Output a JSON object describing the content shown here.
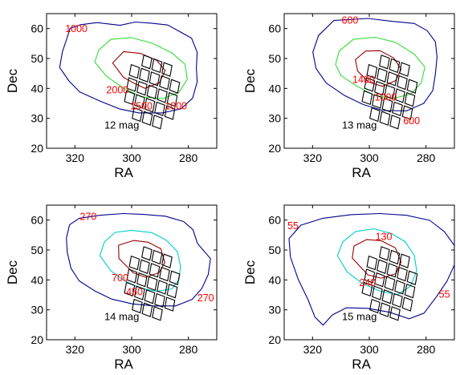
{
  "chart_data": [
    {
      "type": "contour",
      "panel_label": "12 mag",
      "xlabel": "RA",
      "ylabel": "Dec",
      "xlim": [
        330,
        270
      ],
      "ylim": [
        20,
        65
      ],
      "xticks": [
        320,
        300,
        280
      ],
      "yticks": [
        20,
        30,
        40,
        50,
        60
      ],
      "contours": [
        {
          "level": 1000,
          "color": "#00008b",
          "points": [
            [
              321.7,
              60.1
            ],
            [
              318.0,
              61.3
            ],
            [
              312.1,
              62.0
            ],
            [
              304.1,
              61.1
            ],
            [
              298.7,
              62.2
            ],
            [
              293.1,
              61.8
            ],
            [
              287.3,
              61.2
            ],
            [
              282.7,
              58.8
            ],
            [
              278.9,
              56.8
            ],
            [
              276.9,
              52.1
            ],
            [
              277.2,
              46.8
            ],
            [
              276.9,
              42.2
            ],
            [
              278.5,
              36.8
            ],
            [
              282.5,
              33.2
            ],
            [
              289.1,
              31.8
            ],
            [
              297.4,
              31.8
            ],
            [
              304.1,
              33.1
            ],
            [
              311.0,
              35.7
            ],
            [
              318.3,
              38.8
            ],
            [
              322.1,
              42.5
            ],
            [
              325.4,
              47.0
            ],
            [
              324.4,
              52.3
            ],
            [
              322.7,
              57.1
            ]
          ]
        },
        {
          "level": 1500,
          "color": "#33dd33",
          "points": [
            [
              313.0,
              48.8
            ],
            [
              311.6,
              52.8
            ],
            [
              307.3,
              56.4
            ],
            [
              300.1,
              57.0
            ],
            [
              292.7,
              55.1
            ],
            [
              285.9,
              51.9
            ],
            [
              281.2,
              48.1
            ],
            [
              280.4,
              43.0
            ],
            [
              283.4,
              38.6
            ],
            [
              289.0,
              36.6
            ],
            [
              296.7,
              37.2
            ],
            [
              302.9,
              40.1
            ],
            [
              308.8,
              44.0
            ]
          ]
        },
        {
          "level": 2000,
          "color": "#990000",
          "points": [
            [
              306.7,
              48.5
            ],
            [
              302.8,
              52.3
            ],
            [
              296.8,
              51.7
            ],
            [
              291.2,
              49.4
            ],
            [
              288.2,
              46.0
            ],
            [
              290.2,
              41.9
            ],
            [
              295.3,
              40.0
            ],
            [
              299.5,
              41.9
            ],
            [
              302.9,
              43.7
            ]
          ]
        }
      ],
      "contour_labels": [
        {
          "text": "1000",
          "ra": 319.5,
          "dec": 58.8
        },
        {
          "text": "2000",
          "ra": 305.0,
          "dec": 38.3
        },
        {
          "text": "1500",
          "ra": 296.6,
          "dec": 33.0
        },
        {
          "text": "1000",
          "ra": 284.4,
          "dec": 33.0
        }
      ]
    },
    {
      "type": "contour",
      "panel_label": "13 mag",
      "xlabel": "RA",
      "ylabel": "Dec",
      "xlim": [
        330,
        270
      ],
      "ylim": [
        20,
        65
      ],
      "xticks": [
        320,
        300,
        280
      ],
      "yticks": [
        20,
        30,
        40,
        50,
        60
      ],
      "contours": [
        {
          "level": 600,
          "color": "#00008b",
          "points": [
            [
              312.5,
              62.7
            ],
            [
              300.5,
              63.4
            ],
            [
              291.8,
              62.4
            ],
            [
              284.1,
              61.7
            ],
            [
              279.6,
              59.3
            ],
            [
              276.7,
              55.6
            ],
            [
              276.1,
              50.5
            ],
            [
              276.7,
              44.8
            ],
            [
              277.6,
              39.3
            ],
            [
              280.8,
              35.0
            ],
            [
              286.8,
              32.5
            ],
            [
              295.1,
              32.6
            ],
            [
              302.1,
              34.6
            ],
            [
              308.7,
              37.6
            ],
            [
              315.2,
              41.8
            ],
            [
              318.8,
              46.7
            ],
            [
              319.9,
              52.1
            ],
            [
              317.9,
              57.7
            ]
          ]
        },
        {
          "level": 1000,
          "color": "#33dd33",
          "points": [
            [
              311.9,
              48.0
            ],
            [
              310.6,
              52.5
            ],
            [
              305.6,
              56.4
            ],
            [
              298.0,
              57.1
            ],
            [
              290.8,
              55.4
            ],
            [
              284.2,
              51.5
            ],
            [
              280.4,
              47.1
            ],
            [
              281.7,
              41.9
            ],
            [
              285.2,
              38.2
            ],
            [
              291.7,
              36.6
            ],
            [
              298.5,
              37.8
            ],
            [
              304.8,
              41.0
            ],
            [
              310.0,
              44.3
            ]
          ]
        },
        {
          "level": 1400,
          "color": "#990000",
          "points": [
            [
              304.1,
              45.8
            ],
            [
              304.9,
              49.6
            ],
            [
              301.3,
              52.5
            ],
            [
              296.2,
              52.6
            ],
            [
              291.4,
              50.2
            ],
            [
              288.8,
              46.4
            ],
            [
              290.7,
              42.6
            ],
            [
              295.4,
              40.7
            ],
            [
              300.2,
              42.1
            ]
          ]
        }
      ],
      "contour_labels": [
        {
          "text": "600",
          "ra": 306.8,
          "dec": 61.6
        },
        {
          "text": "1400",
          "ra": 302.0,
          "dec": 41.8
        },
        {
          "text": "1000",
          "ra": 294.2,
          "dec": 35.9
        },
        {
          "text": "600",
          "ra": 285.1,
          "dec": 28.1
        }
      ]
    },
    {
      "type": "contour",
      "panel_label": "14 mag",
      "xlabel": "RA",
      "ylabel": "Dec",
      "xlim": [
        330,
        270
      ],
      "ylim": [
        20,
        65
      ],
      "xticks": [
        320,
        300,
        280
      ],
      "yticks": [
        20,
        30,
        40,
        50,
        60
      ],
      "contours": [
        {
          "level": 270,
          "color": "#00008b",
          "points": [
            [
              318.5,
              60.6
            ],
            [
              311.3,
              61.6
            ],
            [
              302.9,
              62.2
            ],
            [
              295.8,
              61.9
            ],
            [
              288.1,
              61.3
            ],
            [
              281.7,
              59.5
            ],
            [
              278.4,
              56.8
            ],
            [
              276.8,
              52.2
            ],
            [
              272.2,
              47.1
            ],
            [
              273.0,
              41.8
            ],
            [
              275.3,
              37.1
            ],
            [
              278.7,
              33.5
            ],
            [
              284.5,
              31.3
            ],
            [
              292.3,
              31.3
            ],
            [
              299.8,
              32.0
            ],
            [
              307.1,
              33.6
            ],
            [
              313.0,
              36.3
            ],
            [
              318.5,
              39.7
            ],
            [
              321.4,
              43.9
            ],
            [
              322.7,
              49.2
            ],
            [
              323.0,
              54.0
            ],
            [
              321.9,
              58.4
            ]
          ]
        },
        {
          "level": 450,
          "color": "#00cccc",
          "points": [
            [
              311.2,
              48.1
            ],
            [
              309.6,
              52.7
            ],
            [
              305.8,
              55.9
            ],
            [
              300.1,
              56.6
            ],
            [
              292.9,
              55.8
            ],
            [
              287.8,
              53.3
            ],
            [
              283.9,
              49.5
            ],
            [
              282.8,
              44.6
            ],
            [
              283.3,
              40.2
            ],
            [
              285.8,
              37.0
            ],
            [
              291.1,
              36.2
            ],
            [
              297.2,
              37.3
            ],
            [
              302.9,
              39.9
            ],
            [
              307.4,
              43.1
            ]
          ]
        },
        {
          "level": 700,
          "color": "#990000",
          "points": [
            [
              304.5,
              47.2
            ],
            [
              304.6,
              51.6
            ],
            [
              299.3,
              53.2
            ],
            [
              294.2,
              52.6
            ],
            [
              289.7,
              50.4
            ],
            [
              288.3,
              45.8
            ],
            [
              290.4,
              42.4
            ],
            [
              295.1,
              40.9
            ],
            [
              299.5,
              42.4
            ]
          ]
        }
      ],
      "contour_labels": [
        {
          "text": "270",
          "ra": 315.3,
          "dec": 60.1
        },
        {
          "text": "700",
          "ra": 304.1,
          "dec": 39.6
        },
        {
          "text": "450",
          "ra": 299.0,
          "dec": 34.8
        },
        {
          "text": "270",
          "ra": 273.9,
          "dec": 32.8
        }
      ]
    },
    {
      "type": "contour",
      "panel_label": "15 mag",
      "xlabel": "RA",
      "ylabel": "Dec",
      "xlim": [
        330,
        270
      ],
      "ylim": [
        20,
        65
      ],
      "xticks": [
        320,
        300,
        280
      ],
      "yticks": [
        20,
        30,
        40,
        50,
        60
      ],
      "contours": [
        {
          "level": 55,
          "color": "#00008b",
          "points": [
            [
              324.1,
              58.3
            ],
            [
              316.4,
              60.6
            ],
            [
              306.5,
              61.8
            ],
            [
              296.3,
              62.2
            ],
            [
              286.8,
              61.6
            ],
            [
              278.7,
              59.9
            ],
            [
              273.5,
              56.1
            ],
            [
              270.0,
              51.5
            ],
            [
              270.0,
              45.0
            ],
            [
              272.6,
              39.6
            ],
            [
              276.3,
              34.4
            ],
            [
              280.7,
              28.9
            ],
            [
              286.0,
              27.0
            ],
            [
              292.8,
              29.2
            ],
            [
              300.5,
              30.5
            ],
            [
              308.1,
              30.7
            ],
            [
              313.0,
              28.3
            ],
            [
              316.3,
              24.9
            ],
            [
              319.2,
              27.6
            ],
            [
              321.6,
              33.4
            ],
            [
              325.1,
              40.3
            ],
            [
              327.8,
              47.6
            ],
            [
              328.3,
              53.8
            ]
          ]
        },
        {
          "level": 130,
          "color": "#00cccc",
          "points": [
            [
              311.2,
              48.1
            ],
            [
              309.4,
              52.7
            ],
            [
              304.8,
              56.2
            ],
            [
              298.3,
              57.1
            ],
            [
              292.1,
              55.5
            ],
            [
              287.3,
              52.7
            ],
            [
              284.1,
              48.1
            ],
            [
              283.3,
              43.0
            ],
            [
              285.5,
              37.9
            ],
            [
              290.1,
              35.0
            ],
            [
              296.4,
              36.3
            ],
            [
              302.6,
              38.9
            ],
            [
              307.8,
              42.7
            ]
          ]
        },
        {
          "level": 240,
          "color": "#990000",
          "points": [
            [
              306.0,
              47.3
            ],
            [
              305.4,
              51.3
            ],
            [
              300.9,
              53.5
            ],
            [
              295.8,
              53.1
            ],
            [
              290.8,
              50.7
            ],
            [
              288.8,
              46.0
            ],
            [
              290.6,
              42.1
            ],
            [
              295.8,
              40.6
            ],
            [
              300.5,
              41.7
            ]
          ]
        }
      ],
      "contour_labels": [
        {
          "text": "55",
          "ra": 326.9,
          "dec": 56.9
        },
        {
          "text": "130",
          "ra": 294.9,
          "dec": 53.4
        },
        {
          "text": "240",
          "ra": 300.6,
          "dec": 38.0
        },
        {
          "text": "55",
          "ra": 273.5,
          "dec": 34.0
        }
      ]
    }
  ],
  "footprint": {
    "color": "#000000",
    "origin_ra": 298.2,
    "origin_dec": 50.1,
    "col_step": [
      -3.55,
      -1.25
    ],
    "row_step": [
      0.85,
      -4.4
    ],
    "cell_size": 0.8,
    "ccd_grid": [
      [
        0,
        1,
        1,
        1,
        0
      ],
      [
        1,
        1,
        1,
        1,
        1
      ],
      [
        1,
        1,
        1,
        1,
        1
      ],
      [
        1,
        1,
        1,
        1,
        1
      ],
      [
        0,
        1,
        1,
        1,
        0
      ]
    ]
  }
}
